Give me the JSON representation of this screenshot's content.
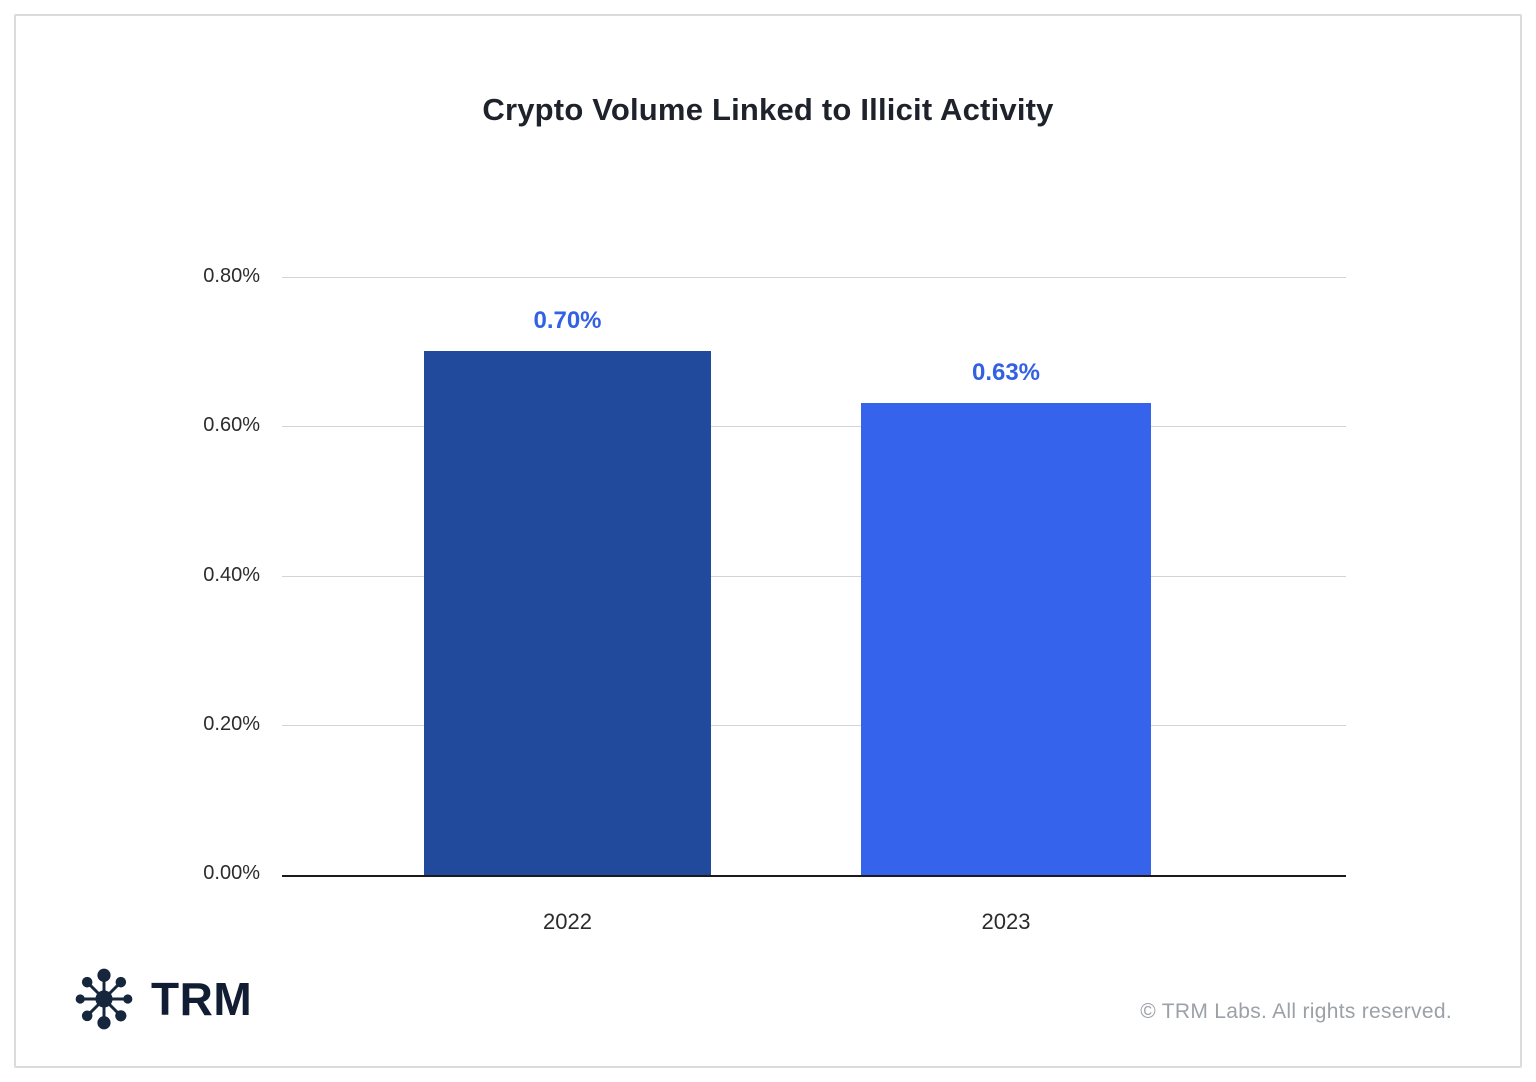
{
  "title": "Crypto Volume Linked to Illicit Activity",
  "chart_data": {
    "type": "bar",
    "title": "Crypto Volume Linked to Illicit Activity",
    "categories": [
      "2022",
      "2023"
    ],
    "values": [
      0.7,
      0.63
    ],
    "value_labels": [
      "0.70%",
      "0.63%"
    ],
    "bar_colors": [
      "#21499C",
      "#3563EB"
    ],
    "value_label_color": "#3261E3",
    "xlabel": "",
    "ylabel": "",
    "ylim": [
      0,
      0.8
    ],
    "yticks": [
      "0.80%",
      "0.60%",
      "0.40%",
      "0.20%",
      "0.00%"
    ],
    "grid": true,
    "legend": false
  },
  "footer": {
    "logo_text": "TRM",
    "copyright": "© TRM Labs. All rights reserved."
  },
  "colors": {
    "bar_2022": "#21499C",
    "bar_2023": "#3563EB",
    "value_label": "#3261E3",
    "gridline": "#d4d4d4",
    "axis_line": "#1b1b1b",
    "logo_navy": "#16263c",
    "copyright_gray": "#9ca1a8"
  }
}
